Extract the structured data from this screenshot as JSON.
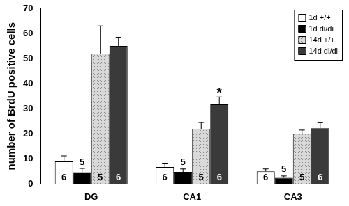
{
  "chart_data": {
    "type": "bar",
    "categories": [
      "DG",
      "CA1",
      "CA3"
    ],
    "y_label": "number of BrdU positive cells",
    "ylim": [
      0,
      70
    ],
    "yticks": [
      0,
      10,
      20,
      30,
      40,
      50,
      60,
      70
    ],
    "grid": false,
    "legend": "upper right",
    "series": [
      {
        "name": "1d +/+",
        "color": "#ffffff",
        "values": [
          9,
          6.8,
          5
        ],
        "error": [
          2.2,
          1.5,
          1
        ],
        "n": [
          6,
          6,
          6
        ]
      },
      {
        "name": "1d di/di",
        "color": "#000000",
        "values": [
          4.7,
          4.8,
          2.5
        ],
        "error": [
          1.5,
          1.2,
          0.7
        ],
        "n": [
          5,
          5,
          5
        ]
      },
      {
        "name": "14d +/+",
        "color": "#d9d9d9",
        "values": [
          52,
          22,
          20
        ],
        "error": [
          11,
          2.5,
          1.5
        ],
        "n": [
          5,
          5,
          5
        ]
      },
      {
        "name": "14d di/di",
        "color": "#3a3a3a",
        "values": [
          55,
          31.7,
          22.2
        ],
        "error": [
          3.5,
          3,
          2.2
        ],
        "n": [
          6,
          6,
          6
        ]
      }
    ],
    "annotations": [
      {
        "text": "*",
        "category": "CA1",
        "series": "14d di/di"
      }
    ]
  }
}
